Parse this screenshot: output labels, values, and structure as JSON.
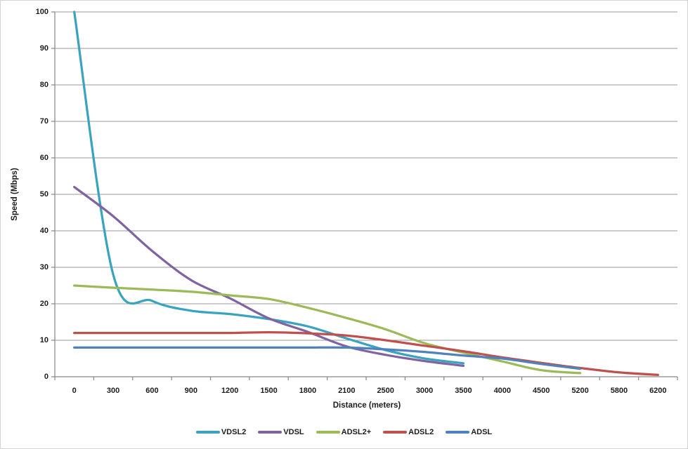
{
  "chart_data": {
    "type": "line",
    "title": "",
    "xlabel": "Distance (meters)",
    "ylabel": "Speed (Mbps)",
    "categories": [
      "0",
      "300",
      "600",
      "900",
      "1200",
      "1500",
      "1800",
      "2100",
      "2500",
      "3000",
      "3500",
      "4000",
      "4500",
      "5200",
      "5800",
      "6200"
    ],
    "series": [
      {
        "name": "VDSL2",
        "color": "#39a3c0",
        "values": [
          100,
          28,
          20.8,
          18.1,
          17.2,
          15.8,
          13.8,
          10.5,
          7.3,
          5,
          3.7
        ]
      },
      {
        "name": "VDSL",
        "color": "#8064a2",
        "values": [
          52,
          44,
          34.5,
          26.5,
          21.5,
          16,
          12.3,
          8.3,
          6,
          4.3,
          3
        ]
      },
      {
        "name": "ADSL2+",
        "color": "#9bbb59",
        "values": [
          25,
          24.4,
          23.9,
          23.3,
          22.3,
          21.3,
          18.9,
          16.1,
          13,
          9.2,
          6.6,
          4.2,
          1.8,
          1
        ]
      },
      {
        "name": "ADSL2",
        "color": "#c0504d",
        "values": [
          12,
          12,
          12,
          12,
          12,
          12.2,
          11.9,
          11.3,
          10,
          8.5,
          7,
          5.3,
          3.8,
          2.4,
          1.2,
          0.5
        ]
      },
      {
        "name": "ADSL",
        "color": "#4f81bd",
        "values": [
          8,
          8,
          8,
          8,
          8,
          8,
          8,
          8,
          7.5,
          6.8,
          5.8,
          5,
          3.5,
          2.2
        ]
      }
    ],
    "ylim": [
      0,
      100
    ],
    "yticks": [
      0,
      10,
      20,
      30,
      40,
      50,
      60,
      70,
      80,
      90,
      100
    ],
    "grid": true,
    "legend_position": "bottom",
    "grid_color": "#9a9a9a",
    "axis_color": "#868686",
    "text_color": "#1c1c1c"
  }
}
